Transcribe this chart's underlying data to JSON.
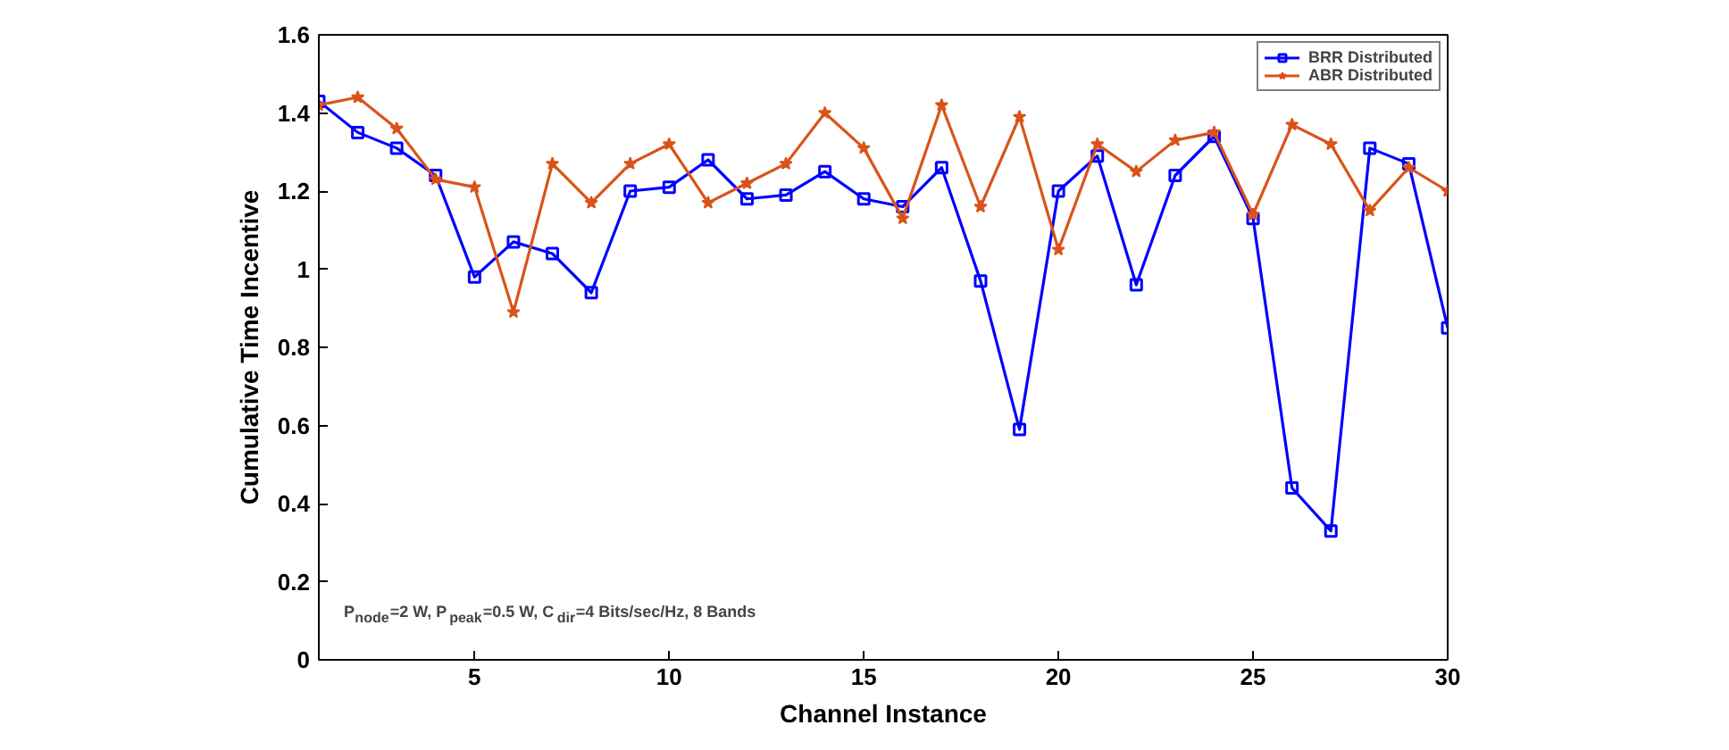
{
  "chart_data": {
    "type": "line",
    "xlabel": "Channel Instance",
    "ylabel": "Cumulative Time Incentive",
    "x": [
      1,
      2,
      3,
      4,
      5,
      6,
      7,
      8,
      9,
      10,
      11,
      12,
      13,
      14,
      15,
      16,
      17,
      18,
      19,
      20,
      21,
      22,
      23,
      24,
      25,
      26,
      27,
      28,
      29,
      30
    ],
    "series": [
      {
        "name": "BRR Distributed",
        "color": "#0000ff",
        "marker": "square",
        "values": [
          1.43,
          1.35,
          1.31,
          1.24,
          0.98,
          1.07,
          1.04,
          0.94,
          1.2,
          1.21,
          1.28,
          1.18,
          1.19,
          1.25,
          1.18,
          1.16,
          1.26,
          0.97,
          0.59,
          1.2,
          1.29,
          0.96,
          1.24,
          1.34,
          1.13,
          0.44,
          0.33,
          1.31,
          1.27,
          0.85
        ]
      },
      {
        "name": "ABR Distributed",
        "color": "#d95319",
        "marker": "star",
        "values": [
          1.42,
          1.44,
          1.36,
          1.23,
          1.21,
          0.89,
          1.27,
          1.17,
          1.27,
          1.32,
          1.17,
          1.22,
          1.27,
          1.4,
          1.31,
          1.13,
          1.42,
          1.16,
          1.39,
          1.05,
          1.32,
          1.25,
          1.33,
          1.35,
          1.14,
          1.37,
          1.32,
          1.15,
          1.26,
          1.2
        ]
      }
    ],
    "xlim": [
      1,
      30
    ],
    "xticks": [
      5,
      10,
      15,
      20,
      25,
      30
    ],
    "ylim": [
      0,
      1.6
    ],
    "yticks": [
      0,
      0.2,
      0.4,
      0.6,
      0.8,
      1,
      1.2,
      1.4,
      1.6
    ],
    "annotations": [
      "P$_{node}$=2 W, P$_{peak}$=0.5 W, C$_{dir}$=4 Bits/sec/Hz, 8 Bands"
    ],
    "legend": "top right",
    "grid": false,
    "line_style": "solid"
  }
}
